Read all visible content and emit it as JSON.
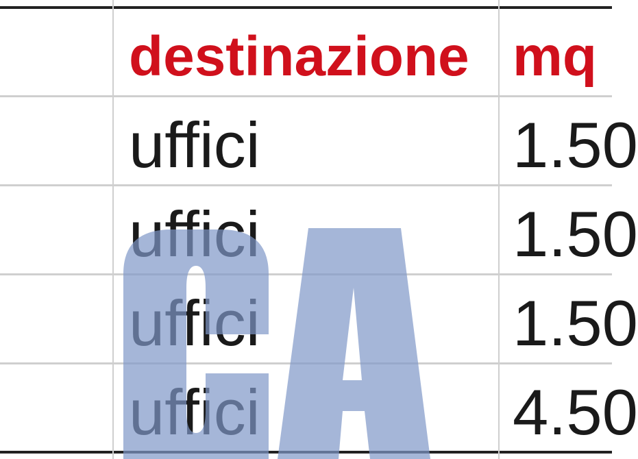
{
  "table": {
    "headers": [
      "destinazione",
      "mq"
    ],
    "rows": [
      {
        "destinazione": "uffici",
        "mq": "1.50"
      },
      {
        "destinazione": "uffici",
        "mq": "1.50"
      },
      {
        "destinazione": "uffici",
        "mq": "1.50"
      },
      {
        "destinazione": "uffici",
        "mq": "4.50"
      }
    ],
    "header_color": "#d0101c"
  },
  "watermark": {
    "text": "CA",
    "color": "#7f97c8"
  }
}
